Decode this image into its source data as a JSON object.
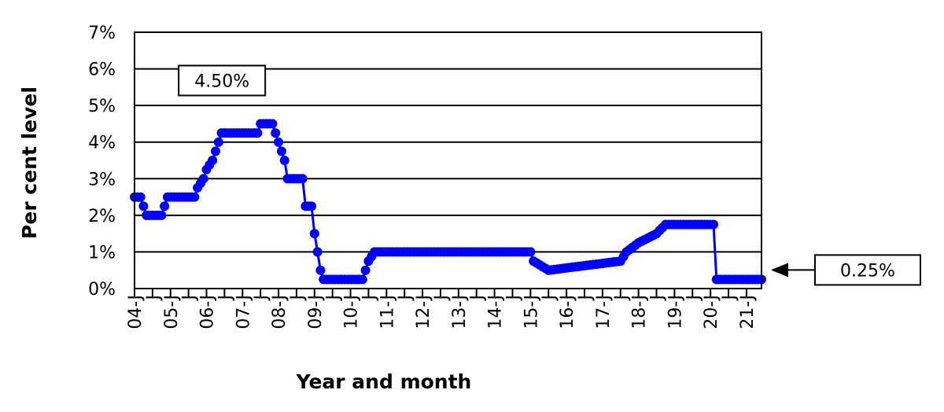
{
  "chart_data": {
    "type": "line",
    "title": "",
    "xlabel": "Year and month",
    "ylabel": "Per cent level",
    "ylim": [
      0,
      7
    ],
    "y_ticks": [
      "0%",
      "1%",
      "2%",
      "3%",
      "4%",
      "5%",
      "6%",
      "7%"
    ],
    "x_year_labels": [
      "04-J",
      "05-J",
      "06-J",
      "07-J",
      "08-J",
      "09-J",
      "10-J",
      "11-J",
      "12-J",
      "13-J",
      "14-J",
      "15-J",
      "16-J",
      "17-J",
      "18-J",
      "19-J",
      "20-J",
      "21-J"
    ],
    "x_half_year_labels": [
      "J",
      "J",
      "J",
      "J",
      "J",
      "J",
      "J",
      "J",
      "J",
      "J",
      "J",
      "J",
      "J",
      "J",
      "J",
      "J",
      "J"
    ],
    "x_range": [
      "2004-01",
      "2021-06"
    ],
    "grid": true,
    "series": [
      {
        "color": "#0000ff",
        "marker": "circle",
        "points": [
          [
            "2004-01",
            2.5
          ],
          [
            "2004-03",
            2.5
          ],
          [
            "2004-04",
            2.25
          ],
          [
            "2004-05",
            2.0
          ],
          [
            "2004-10",
            2.0
          ],
          [
            "2004-11",
            2.25
          ],
          [
            "2004-12",
            2.5
          ],
          [
            "2005-09",
            2.5
          ],
          [
            "2005-10",
            2.75
          ],
          [
            "2005-12",
            3.0
          ],
          [
            "2006-01",
            3.25
          ],
          [
            "2006-03",
            3.5
          ],
          [
            "2006-04",
            3.75
          ],
          [
            "2006-05",
            4.0
          ],
          [
            "2006-06",
            4.25
          ],
          [
            "2007-06",
            4.25
          ],
          [
            "2007-07",
            4.5
          ],
          [
            "2007-11",
            4.5
          ],
          [
            "2007-12",
            4.25
          ],
          [
            "2008-01",
            4.0
          ],
          [
            "2008-03",
            3.5
          ],
          [
            "2008-04",
            3.0
          ],
          [
            "2008-09",
            3.0
          ],
          [
            "2008-10",
            2.25
          ],
          [
            "2008-12",
            2.25
          ],
          [
            "2009-01",
            1.5
          ],
          [
            "2009-02",
            1.0
          ],
          [
            "2009-03",
            0.5
          ],
          [
            "2009-04",
            0.25
          ],
          [
            "2010-05",
            0.25
          ],
          [
            "2010-06",
            0.5
          ],
          [
            "2010-07",
            0.75
          ],
          [
            "2010-09",
            1.0
          ],
          [
            "2015-01",
            1.0
          ],
          [
            "2015-02",
            0.75
          ],
          [
            "2015-07",
            0.5
          ],
          [
            "2017-07",
            0.75
          ],
          [
            "2017-09",
            1.0
          ],
          [
            "2018-01",
            1.25
          ],
          [
            "2018-07",
            1.5
          ],
          [
            "2018-10",
            1.75
          ],
          [
            "2020-02",
            1.75
          ],
          [
            "2020-03",
            0.25
          ],
          [
            "2021-06",
            0.25
          ]
        ]
      }
    ],
    "annotations": [
      {
        "label": "4.50%",
        "date": "2007-07",
        "value": 4.5
      },
      {
        "label": "0.25%",
        "date": "2021-06",
        "value": 0.25
      }
    ]
  }
}
